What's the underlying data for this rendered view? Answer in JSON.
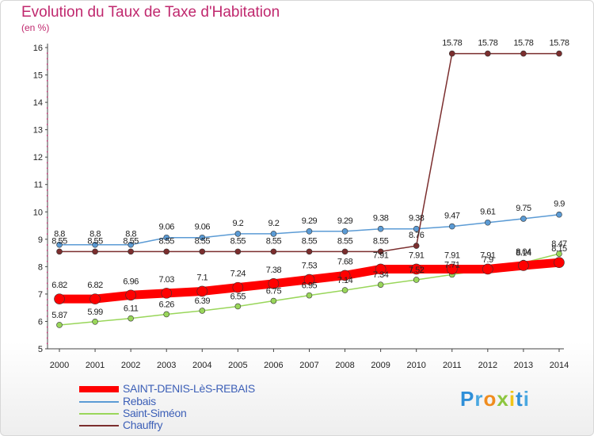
{
  "header": {
    "title": "Evolution du Taux de Taxe d'Habitation",
    "unit": "(en %)"
  },
  "logo": {
    "text": "Proxiti"
  },
  "chart_data": {
    "type": "line",
    "title": "Evolution du Taux de Taxe d'Habitation",
    "ylabel": "(en %)",
    "xlabel": "",
    "x": [
      "2000",
      "2001",
      "2002",
      "2003",
      "2004",
      "2005",
      "2006",
      "2007",
      "2008",
      "2009",
      "2010",
      "2011",
      "2012",
      "2013",
      "2014"
    ],
    "ylim": [
      5,
      16
    ],
    "yticks": [
      "5",
      "6",
      "7",
      "8",
      "9",
      "10",
      "11",
      "12",
      "13",
      "14",
      "15",
      "16"
    ],
    "grid": false,
    "legend_position": "bottom-left",
    "series": [
      {
        "name": "SAINT-DENIS-LèS-REBAIS",
        "color": "#ff0000",
        "values": [
          6.82,
          6.82,
          6.96,
          7.03,
          7.1,
          7.24,
          7.38,
          7.53,
          7.68,
          7.91,
          7.91,
          7.91,
          7.91,
          8.04,
          8.15
        ],
        "labels": [
          "6.82",
          "6.82",
          "6.96",
          "7.03",
          "7.1",
          "7.24",
          "7.38",
          "7.53",
          "7.68",
          "7.91",
          "7.91",
          "7.91",
          "7.91",
          "8.04",
          "8.15"
        ]
      },
      {
        "name": "Rebais",
        "color": "#5b9bd5",
        "values": [
          8.8,
          8.8,
          8.8,
          9.06,
          9.06,
          9.2,
          9.2,
          9.29,
          9.29,
          9.38,
          9.38,
          9.47,
          9.61,
          9.75,
          9.9
        ],
        "labels": [
          "8.8",
          "8.8",
          "8.8",
          "9.06",
          "9.06",
          "9.2",
          "9.2",
          "9.29",
          "9.29",
          "9.38",
          "9.38",
          "9.47",
          "9.61",
          "9.75",
          "9.9"
        ]
      },
      {
        "name": "Saint-Siméon",
        "color": "#99d65a",
        "values": [
          5.87,
          5.99,
          6.11,
          6.26,
          6.39,
          6.55,
          6.75,
          6.95,
          7.14,
          7.34,
          7.52,
          7.71,
          7.9,
          8.14,
          8.47
        ],
        "labels": [
          "5.87",
          "5.99",
          "6.11",
          "6.26",
          "6.39",
          "6.55",
          "6.75",
          "6.95",
          "7.14",
          "7.34",
          "7.52",
          "7.71",
          "7.9",
          "8.14",
          "8.47"
        ]
      },
      {
        "name": "Chauffry",
        "color": "#7b2e2e",
        "values": [
          8.55,
          8.55,
          8.55,
          8.55,
          8.55,
          8.55,
          8.55,
          8.55,
          8.55,
          8.55,
          8.76,
          15.78,
          15.78,
          15.78,
          15.78
        ],
        "labels": [
          "8.55",
          "8.55",
          "8.55",
          "8.55",
          "8.55",
          "8.55",
          "8.55",
          "8.55",
          "8.55",
          "8.55",
          "8.76",
          "15.78",
          "15.78",
          "15.78",
          "15.78"
        ]
      }
    ]
  }
}
